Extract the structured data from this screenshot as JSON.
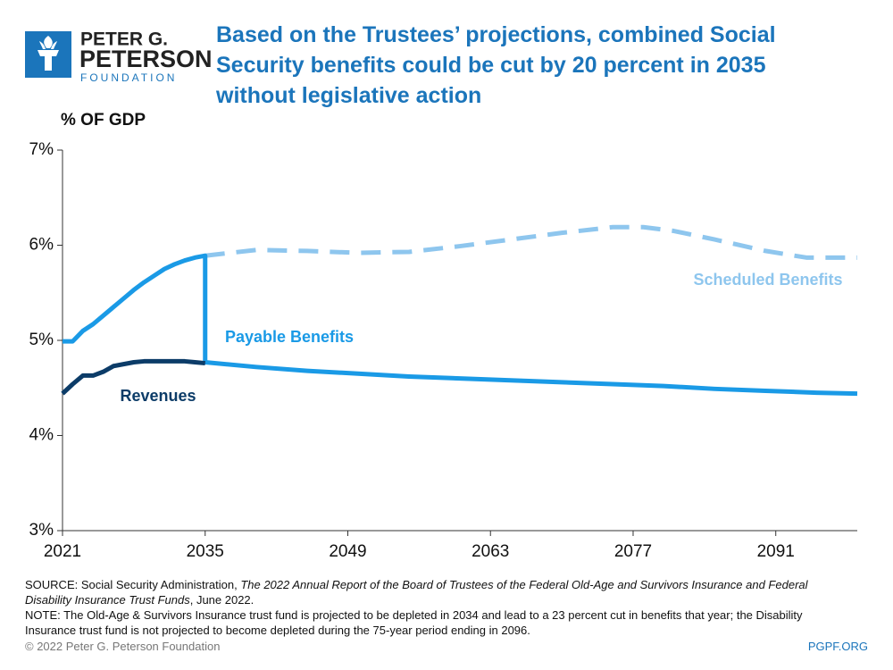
{
  "logo": {
    "line1": "PETER G.",
    "line2": "PETERSON",
    "line3": "FOUNDATION"
  },
  "chart_data": {
    "type": "line",
    "title": "Based on the Trustees’ projections, combined Social Security benefits could be cut by 20 percent in 2035 without legislative action",
    "ylabel": "% OF GDP",
    "xlim": [
      2021,
      2099
    ],
    "xticks": [
      2021,
      2035,
      2049,
      2063,
      2077,
      2091
    ],
    "ylim": [
      3,
      7
    ],
    "yticks": [
      {
        "value": 3,
        "label": "3%"
      },
      {
        "value": 4,
        "label": "4%"
      },
      {
        "value": 5,
        "label": "5%"
      },
      {
        "value": 6,
        "label": "6%"
      },
      {
        "value": 7,
        "label": "7%"
      }
    ],
    "grid": false,
    "series": [
      {
        "name": "Scheduled Benefits",
        "color": "#8ec6ee",
        "dashed": true,
        "x": [
          2035,
          2040,
          2045,
          2050,
          2055,
          2060,
          2065,
          2070,
          2075,
          2078,
          2081,
          2085,
          2090,
          2094,
          2099
        ],
        "values": [
          5.89,
          5.95,
          5.94,
          5.92,
          5.93,
          5.99,
          6.06,
          6.13,
          6.19,
          6.19,
          6.15,
          6.06,
          5.94,
          5.87,
          5.87
        ]
      },
      {
        "name": "Payable Benefits",
        "color": "#1a9ae6",
        "dashed": false,
        "x": [
          2021,
          2022,
          2023,
          2024,
          2025,
          2026,
          2027,
          2028,
          2029,
          2030,
          2031,
          2032,
          2033,
          2034,
          2035,
          2035,
          2040,
          2045,
          2050,
          2055,
          2060,
          2065,
          2070,
          2075,
          2080,
          2085,
          2090,
          2095,
          2099
        ],
        "values": [
          4.99,
          4.99,
          5.1,
          5.17,
          5.26,
          5.35,
          5.44,
          5.53,
          5.61,
          5.68,
          5.75,
          5.8,
          5.84,
          5.87,
          5.89,
          4.77,
          4.72,
          4.68,
          4.65,
          4.62,
          4.6,
          4.58,
          4.56,
          4.54,
          4.52,
          4.49,
          4.47,
          4.45,
          4.44
        ]
      },
      {
        "name": "Revenues",
        "color": "#0c3c68",
        "dashed": false,
        "x": [
          2021,
          2022,
          2023,
          2024,
          2025,
          2026,
          2027,
          2028,
          2029,
          2030,
          2031,
          2032,
          2033,
          2034,
          2035
        ],
        "values": [
          4.44,
          4.54,
          4.63,
          4.63,
          4.67,
          4.73,
          4.75,
          4.77,
          4.78,
          4.78,
          4.78,
          4.78,
          4.78,
          4.77,
          4.76
        ]
      }
    ]
  },
  "source": {
    "prefix": "SOURCE: Social Security Administration, ",
    "italic": "The 2022 Annual Report of the Board of Trustees of the Federal Old-Age and Survivors Insurance and Federal Disability Insurance Trust Funds",
    "suffix": ", June 2022."
  },
  "note": "NOTE: The Old-Age & Survivors Insurance trust fund is projected to be depleted in 2034 and lead to a 23 percent cut in benefits that year; the Disability Insurance trust fund is not projected to become depleted during the 75-year period ending in 2096.",
  "footer": {
    "copyright": "© 2022 Peter G. Peterson Foundation",
    "site": "PGPF.ORG"
  }
}
